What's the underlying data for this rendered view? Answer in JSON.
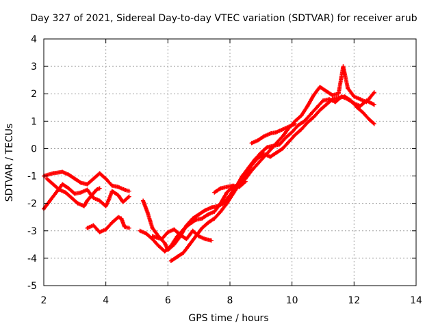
{
  "chart_data": {
    "type": "scatter",
    "title": "Day 327 of 2021, Sidereal Day-to-day VTEC variation (SDTVAR) for receiver arub",
    "xlabel": "GPS time / hours",
    "ylabel": "SDTVAR / TECUs",
    "xlim": [
      2,
      14
    ],
    "ylim": [
      -5,
      4
    ],
    "xticks": [
      2,
      4,
      6,
      8,
      10,
      12,
      14
    ],
    "yticks": [
      -5,
      -4,
      -3,
      -2,
      -1,
      0,
      1,
      2,
      3,
      4
    ],
    "grid": true,
    "marker": "+",
    "color": "#ff0000",
    "series": [
      {
        "name": "track-1",
        "points": [
          [
            2.0,
            -1.0
          ],
          [
            2.3,
            -0.9
          ],
          [
            2.6,
            -0.85
          ],
          [
            2.8,
            -0.95
          ],
          [
            3.0,
            -1.1
          ],
          [
            3.2,
            -1.25
          ],
          [
            3.4,
            -1.3
          ],
          [
            3.6,
            -1.1
          ],
          [
            3.8,
            -0.9
          ],
          [
            4.0,
            -1.1
          ],
          [
            4.2,
            -1.35
          ],
          [
            4.4,
            -1.4
          ],
          [
            4.6,
            -1.5
          ],
          [
            4.75,
            -1.55
          ]
        ]
      },
      {
        "name": "track-2",
        "points": [
          [
            2.0,
            -2.2
          ],
          [
            2.2,
            -1.9
          ],
          [
            2.4,
            -1.6
          ],
          [
            2.6,
            -1.3
          ],
          [
            2.8,
            -1.45
          ],
          [
            3.0,
            -1.65
          ],
          [
            3.2,
            -1.6
          ],
          [
            3.4,
            -1.5
          ],
          [
            3.6,
            -1.8
          ],
          [
            3.8,
            -1.9
          ],
          [
            4.0,
            -2.1
          ],
          [
            4.1,
            -1.85
          ],
          [
            4.2,
            -1.55
          ],
          [
            4.4,
            -1.7
          ],
          [
            4.55,
            -1.95
          ],
          [
            4.75,
            -1.75
          ]
        ]
      },
      {
        "name": "track-3",
        "points": [
          [
            2.1,
            -1.1
          ],
          [
            2.3,
            -1.3
          ],
          [
            2.5,
            -1.5
          ],
          [
            2.7,
            -1.6
          ],
          [
            2.9,
            -1.8
          ],
          [
            3.1,
            -2.0
          ],
          [
            3.3,
            -2.1
          ],
          [
            3.4,
            -1.9
          ],
          [
            3.55,
            -1.7
          ],
          [
            3.7,
            -1.5
          ],
          [
            3.8,
            -1.45
          ]
        ]
      },
      {
        "name": "track-4",
        "points": [
          [
            3.4,
            -2.9
          ],
          [
            3.6,
            -2.8
          ],
          [
            3.8,
            -3.05
          ],
          [
            4.0,
            -2.95
          ],
          [
            4.2,
            -2.7
          ],
          [
            4.4,
            -2.5
          ],
          [
            4.5,
            -2.55
          ],
          [
            4.6,
            -2.85
          ],
          [
            4.75,
            -2.9
          ]
        ]
      },
      {
        "name": "track-5",
        "points": [
          [
            5.2,
            -1.9
          ],
          [
            5.35,
            -2.35
          ],
          [
            5.5,
            -2.9
          ],
          [
            5.7,
            -3.2
          ],
          [
            5.9,
            -3.45
          ],
          [
            6.0,
            -3.7
          ],
          [
            6.2,
            -3.5
          ],
          [
            6.4,
            -3.2
          ],
          [
            6.6,
            -2.8
          ],
          [
            6.8,
            -2.55
          ],
          [
            7.0,
            -2.4
          ],
          [
            7.2,
            -2.25
          ],
          [
            7.4,
            -2.15
          ],
          [
            7.6,
            -2.1
          ],
          [
            7.8,
            -2.0
          ],
          [
            8.0,
            -1.7
          ],
          [
            8.2,
            -1.4
          ],
          [
            8.4,
            -1.0
          ],
          [
            8.6,
            -0.7
          ],
          [
            8.8,
            -0.4
          ],
          [
            9.0,
            -0.15
          ],
          [
            9.2,
            0.05
          ],
          [
            9.4,
            0.1
          ],
          [
            9.6,
            0.15
          ],
          [
            9.8,
            0.4
          ],
          [
            10.0,
            0.6
          ],
          [
            10.2,
            0.85
          ],
          [
            10.4,
            1.0
          ],
          [
            10.6,
            1.25
          ],
          [
            10.8,
            1.5
          ],
          [
            11.0,
            1.75
          ],
          [
            11.2,
            1.8
          ],
          [
            11.4,
            1.7
          ],
          [
            11.6,
            1.9
          ],
          [
            11.8,
            1.8
          ],
          [
            12.0,
            1.65
          ],
          [
            12.2,
            1.55
          ],
          [
            12.4,
            1.75
          ],
          [
            12.65,
            1.6
          ]
        ]
      },
      {
        "name": "track-6",
        "points": [
          [
            5.1,
            -3.0
          ],
          [
            5.3,
            -3.1
          ],
          [
            5.5,
            -3.3
          ],
          [
            5.7,
            -3.55
          ],
          [
            5.9,
            -3.75
          ],
          [
            6.1,
            -3.55
          ],
          [
            6.3,
            -3.2
          ],
          [
            6.5,
            -2.95
          ],
          [
            6.7,
            -2.75
          ],
          [
            6.9,
            -2.6
          ],
          [
            7.1,
            -2.55
          ],
          [
            7.3,
            -2.4
          ],
          [
            7.5,
            -2.3
          ],
          [
            7.7,
            -2.0
          ],
          [
            7.9,
            -1.6
          ],
          [
            8.1,
            -1.4
          ],
          [
            8.3,
            -1.35
          ],
          [
            8.5,
            -1.1
          ],
          [
            8.7,
            -0.8
          ],
          [
            8.9,
            -0.55
          ],
          [
            9.1,
            -0.3
          ],
          [
            9.3,
            -0.05
          ],
          [
            9.5,
            0.2
          ],
          [
            9.7,
            0.45
          ],
          [
            9.9,
            0.75
          ],
          [
            10.1,
            1.0
          ],
          [
            10.3,
            1.2
          ],
          [
            10.5,
            1.55
          ],
          [
            10.7,
            1.95
          ],
          [
            10.9,
            2.25
          ],
          [
            11.1,
            2.1
          ],
          [
            11.3,
            1.95
          ],
          [
            11.5,
            2.0
          ],
          [
            11.65,
            3.0
          ],
          [
            11.8,
            2.2
          ],
          [
            12.0,
            1.9
          ],
          [
            12.2,
            1.8
          ],
          [
            12.4,
            1.7
          ],
          [
            12.65,
            2.05
          ]
        ]
      },
      {
        "name": "track-7",
        "points": [
          [
            5.5,
            -3.2
          ],
          [
            5.8,
            -3.3
          ],
          [
            6.0,
            -3.05
          ],
          [
            6.2,
            -2.95
          ],
          [
            6.4,
            -3.15
          ],
          [
            6.6,
            -3.3
          ],
          [
            6.8,
            -3.0
          ],
          [
            7.0,
            -3.2
          ],
          [
            7.2,
            -3.3
          ],
          [
            7.4,
            -3.35
          ]
        ]
      },
      {
        "name": "track-8",
        "points": [
          [
            6.1,
            -4.1
          ],
          [
            6.3,
            -3.95
          ],
          [
            6.5,
            -3.8
          ],
          [
            6.7,
            -3.5
          ],
          [
            6.9,
            -3.2
          ],
          [
            7.1,
            -2.9
          ],
          [
            7.3,
            -2.7
          ],
          [
            7.5,
            -2.55
          ],
          [
            7.7,
            -2.3
          ],
          [
            7.9,
            -2.0
          ],
          [
            8.1,
            -1.65
          ],
          [
            8.3,
            -1.3
          ],
          [
            8.5,
            -0.95
          ],
          [
            8.7,
            -0.6
          ],
          [
            8.9,
            -0.35
          ],
          [
            9.1,
            -0.2
          ],
          [
            9.3,
            -0.3
          ],
          [
            9.5,
            -0.15
          ],
          [
            9.7,
            0.0
          ],
          [
            9.9,
            0.25
          ],
          [
            10.1,
            0.5
          ],
          [
            10.3,
            0.7
          ],
          [
            10.5,
            0.95
          ],
          [
            10.7,
            1.15
          ],
          [
            10.9,
            1.4
          ],
          [
            11.1,
            1.6
          ],
          [
            11.3,
            1.8
          ],
          [
            11.5,
            1.85
          ],
          [
            11.7,
            1.9
          ],
          [
            11.9,
            1.75
          ],
          [
            12.1,
            1.5
          ],
          [
            12.3,
            1.3
          ],
          [
            12.5,
            1.05
          ],
          [
            12.65,
            0.9
          ]
        ]
      },
      {
        "name": "track-9",
        "points": [
          [
            7.5,
            -1.6
          ],
          [
            7.7,
            -1.45
          ],
          [
            7.9,
            -1.4
          ],
          [
            8.1,
            -1.35
          ],
          [
            8.3,
            -1.4
          ],
          [
            8.5,
            -1.2
          ]
        ]
      },
      {
        "name": "track-10",
        "points": [
          [
            8.7,
            0.2
          ],
          [
            8.9,
            0.3
          ],
          [
            9.1,
            0.45
          ],
          [
            9.3,
            0.55
          ],
          [
            9.5,
            0.6
          ],
          [
            9.7,
            0.7
          ],
          [
            9.9,
            0.8
          ],
          [
            10.1,
            0.9
          ]
        ]
      }
    ]
  }
}
